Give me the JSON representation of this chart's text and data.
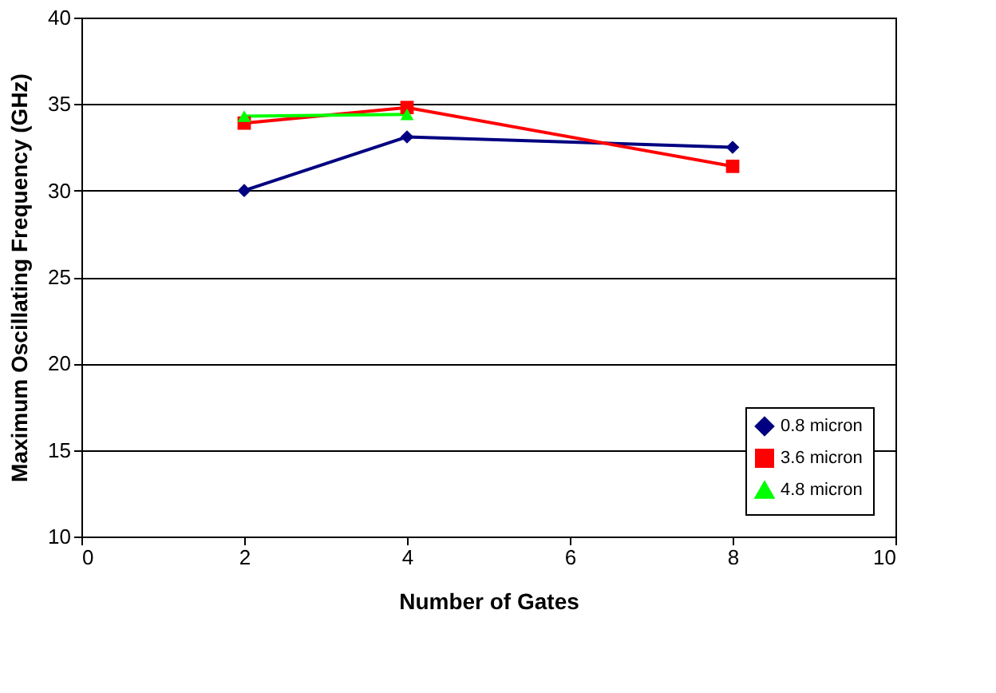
{
  "chart_data": {
    "type": "line",
    "xlabel": "Number of Gates",
    "ylabel": "Maximum Oscillating Frequency (GHz)",
    "xlim": [
      0,
      10
    ],
    "xticks": [
      0,
      2,
      4,
      6,
      8,
      10
    ],
    "ylim": [
      10,
      40
    ],
    "yticks": [
      10,
      15,
      20,
      25,
      30,
      35,
      40
    ],
    "grid": "y",
    "legend": "bottom right",
    "line_style": "solid",
    "series": [
      {
        "name": "0.8 micron",
        "color": "#000080",
        "marker": "diamond",
        "x": [
          2,
          4,
          8
        ],
        "values": [
          30,
          33.1,
          32.5
        ]
      },
      {
        "name": "3.6 micron",
        "color": "#ff0000",
        "marker": "square",
        "x": [
          2,
          4,
          8
        ],
        "values": [
          33.9,
          34.8,
          31.4
        ]
      },
      {
        "name": "4.8 micron",
        "color": "#00ff00",
        "marker": "triangle",
        "x": [
          2,
          4
        ],
        "values": [
          34.3,
          34.4
        ]
      }
    ]
  }
}
